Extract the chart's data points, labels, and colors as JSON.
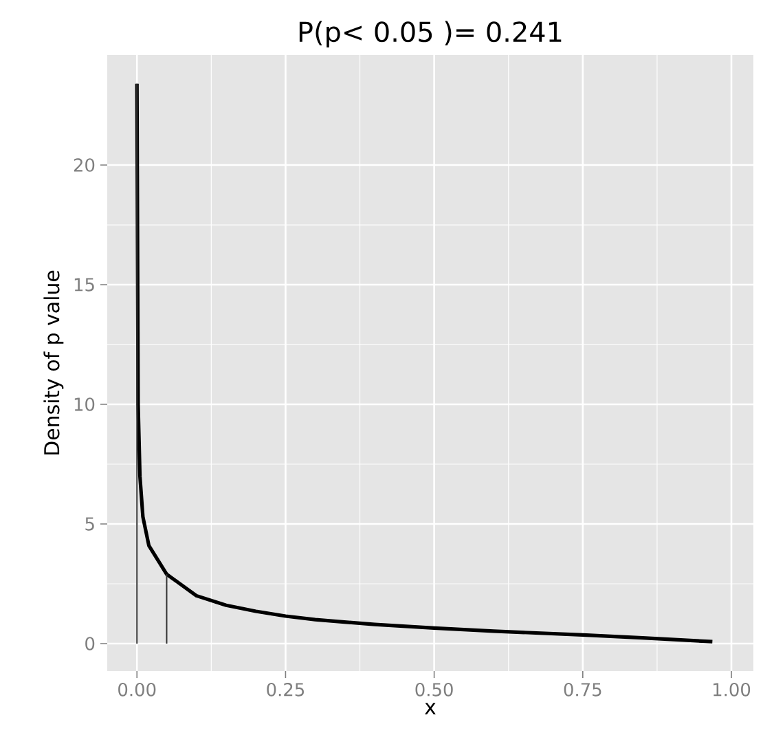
{
  "chart_data": {
    "type": "line",
    "title": "P(p< 0.05 )= 0.241",
    "xlabel": "x",
    "ylabel": "Density of p value",
    "series": [
      {
        "color": "#000000",
        "x": [
          0,
          0.002,
          0.005,
          0.01,
          0.02,
          0.05,
          0.1,
          0.15,
          0.2,
          0.25,
          0.3,
          0.4,
          0.5,
          0.6,
          0.75,
          0.85,
          0.968
        ],
        "values": [
          23.4,
          10,
          7,
          5.3,
          4.1,
          2.9,
          2.0,
          1.6,
          1.35,
          1.15,
          1.0,
          0.8,
          0.65,
          0.52,
          0.36,
          0.24,
          0.08
        ]
      },
      {
        "color": "#333333",
        "x": [
          0,
          0
        ],
        "values": [
          0,
          23.4
        ]
      },
      {
        "color": "#333333",
        "x": [
          0.05,
          0.05
        ],
        "values": [
          0,
          2.9
        ]
      }
    ],
    "xlim": [
      -0.05,
      1.037
    ],
    "ylim": [
      -1.15,
      24.6
    ],
    "xticks": [
      {
        "value": 0,
        "label": "0.00"
      },
      {
        "value": 0.25,
        "label": "0.25"
      },
      {
        "value": 0.5,
        "label": "0.50"
      },
      {
        "value": 0.75,
        "label": "0.75"
      },
      {
        "value": 1,
        "label": "1.00"
      }
    ],
    "yticks": [
      0,
      5,
      10,
      15,
      20
    ],
    "grid": true
  }
}
